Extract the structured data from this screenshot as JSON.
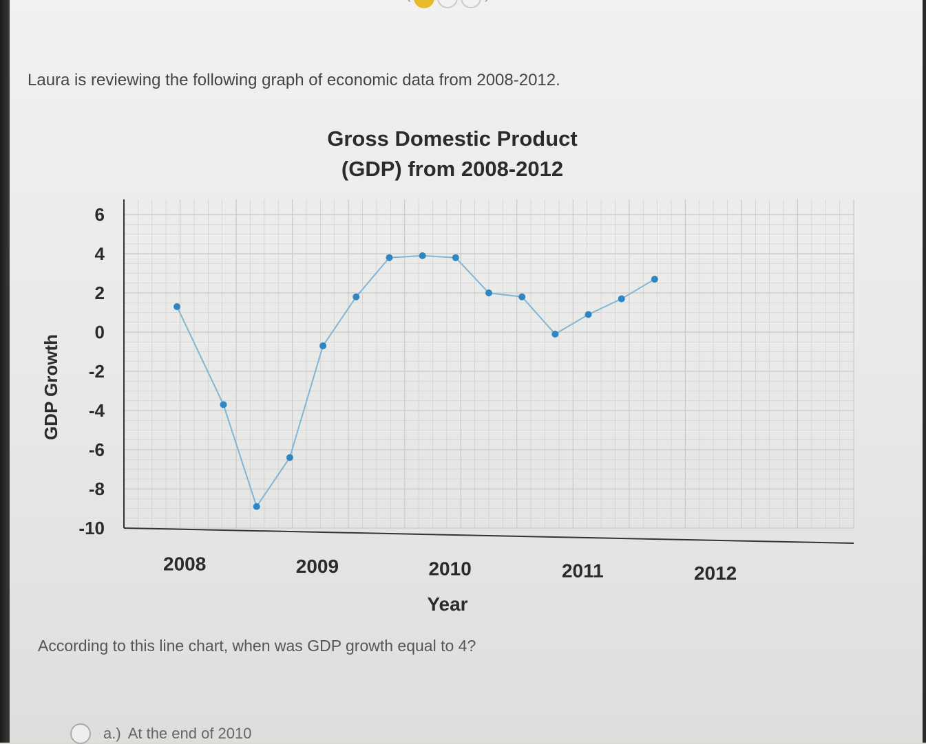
{
  "intro_text": "Laura is reviewing the following graph of economic data from 2008-2012.",
  "question_text": "According to this line chart, when was GDP growth equal to 4?",
  "options": [
    {
      "label": "a.)",
      "text": "At the end of 2010"
    }
  ],
  "colors": {
    "line": "#7fb6d6",
    "marker": "#2f86c3",
    "grid": "#c9c9c9",
    "axis": "#333333",
    "accent": "#e8b92a"
  },
  "chart_data": {
    "type": "line",
    "title": [
      "Gross Domestic Product",
      "(GDP) from 2008-2012"
    ],
    "xlabel": "Year",
    "ylabel": "GDP Growth",
    "yticks": [
      6,
      4,
      2,
      0,
      -2,
      -4,
      -6,
      -8,
      -10
    ],
    "ylim": [
      -10,
      6
    ],
    "xticks": [
      2008,
      2009,
      2010,
      2011,
      2012
    ],
    "xlim": [
      2007.75,
      2013.25
    ],
    "grid": true,
    "series": [
      {
        "x": [
          2008.15,
          2008.5,
          2008.75,
          2009.0,
          2009.25,
          2009.5,
          2009.75,
          2010.0,
          2010.25,
          2010.5,
          2010.75,
          2011.0,
          2011.25,
          2011.5,
          2011.75
        ],
        "y": [
          1.3,
          -3.7,
          -8.9,
          -6.4,
          -0.7,
          1.8,
          3.8,
          3.9,
          3.8,
          2.0,
          1.8,
          -0.1,
          0.9,
          1.7,
          2.7
        ]
      }
    ]
  }
}
